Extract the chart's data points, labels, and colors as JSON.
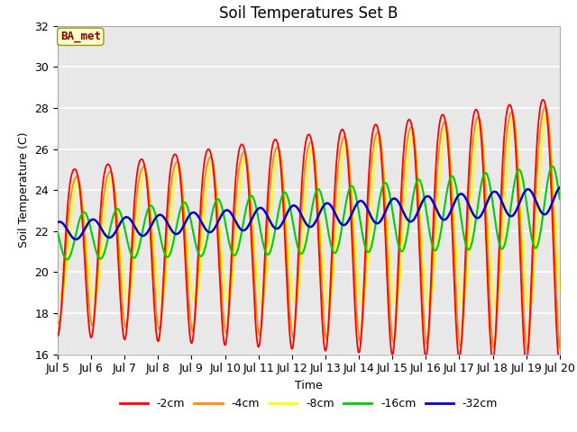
{
  "title": "Soil Temperatures Set B",
  "xlabel": "Time",
  "ylabel": "Soil Temperature (C)",
  "ylim": [
    16,
    32
  ],
  "xlim_days": [
    5,
    20
  ],
  "xtick_labels": [
    "Jul 5",
    "Jul 6",
    "Jul 7",
    "Jul 8",
    "Jul 9",
    "Jul 10",
    "Jul 11",
    "Jul 12",
    "Jul 13",
    "Jul 14",
    "Jul 15",
    "Jul 16",
    "Jul 17",
    "Jul 18",
    "Jul 19",
    "Jul 20"
  ],
  "annotation_text": "BA_met",
  "annotation_color": "#8B0000",
  "annotation_bg": "#FFFFCC",
  "annotation_border": "#999900",
  "colors": {
    "-2cm": "#FF0000",
    "-4cm": "#FF8C00",
    "-8cm": "#FFFF00",
    "-16cm": "#00CC00",
    "-32cm": "#0000CC"
  },
  "legend_labels": [
    "-2cm",
    "-4cm",
    "-8cm",
    "-16cm",
    "-32cm"
  ],
  "bg_color": "#E8E8E8",
  "grid_color": "#FFFFFF",
  "title_fontsize": 12,
  "axis_fontsize": 9,
  "tick_fontsize": 9,
  "legend_fontsize": 9
}
